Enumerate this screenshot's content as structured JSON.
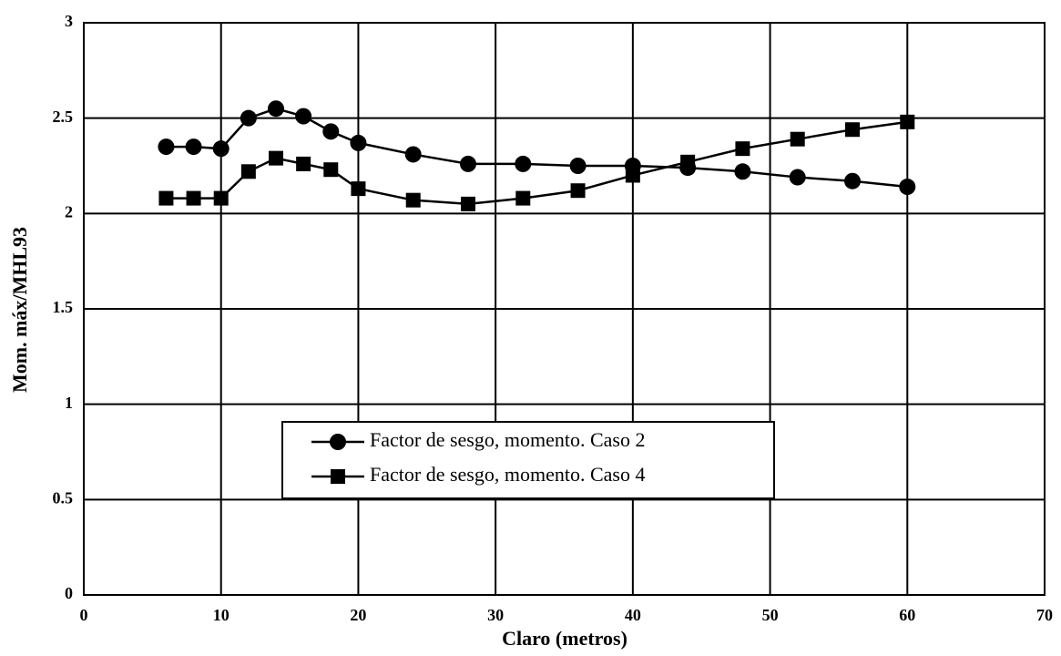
{
  "chart_data": {
    "type": "line",
    "xlabel": "Claro (metros)",
    "ylabel": "Mom. máx/MHL93",
    "x": [
      6,
      8,
      10,
      12,
      14,
      16,
      18,
      20,
      24,
      28,
      32,
      36,
      40,
      44,
      48,
      52,
      56,
      60
    ],
    "series": [
      {
        "name": "Factor de sesgo, momento. Caso 2",
        "color": "#000000",
        "marker": "circle",
        "values": [
          2.35,
          2.35,
          2.34,
          2.5,
          2.55,
          2.51,
          2.43,
          2.37,
          2.31,
          2.26,
          2.26,
          2.25,
          2.25,
          2.24,
          2.22,
          2.19,
          2.17,
          2.14
        ]
      },
      {
        "name": "Factor de sesgo, momento. Caso 4",
        "color": "#000000",
        "marker": "square",
        "values": [
          2.08,
          2.08,
          2.08,
          2.22,
          2.29,
          2.26,
          2.23,
          2.13,
          2.07,
          2.05,
          2.08,
          2.12,
          2.2,
          2.27,
          2.34,
          2.39,
          2.44,
          2.48
        ]
      }
    ],
    "xlim": [
      0,
      70
    ],
    "xticks": [
      0,
      10,
      20,
      30,
      40,
      50,
      60,
      70
    ],
    "ylim": [
      0,
      3
    ],
    "yticks": [
      0,
      0.5,
      1,
      1.5,
      2,
      2.5,
      3
    ],
    "grid": true,
    "legend": "lower center"
  }
}
